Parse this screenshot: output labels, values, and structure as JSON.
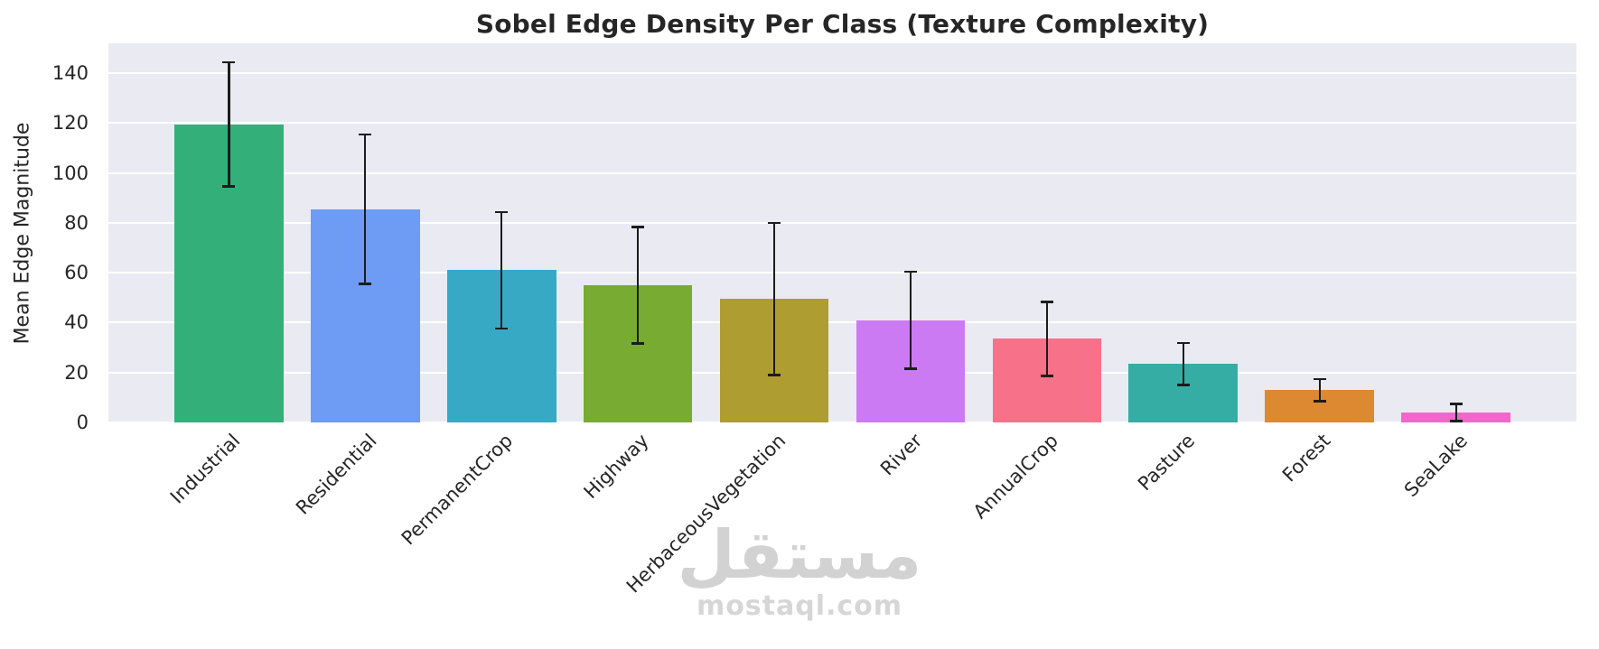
{
  "chart_data": {
    "type": "bar",
    "title": "Sobel Edge Density Per Class (Texture Complexity)",
    "xlabel": "",
    "ylabel": "Mean Edge Magnitude",
    "ylim": [
      0,
      152
    ],
    "yticks": [
      0,
      20,
      40,
      60,
      80,
      100,
      120,
      140
    ],
    "grid": true,
    "legend_position": "none",
    "categories": [
      "Industrial",
      "Residential",
      "PermanentCrop",
      "Highway",
      "HerbaceousVegetation",
      "River",
      "AnnualCrop",
      "Pasture",
      "Forest",
      "SeaLake"
    ],
    "values": [
      119.5,
      85.5,
      61,
      55,
      49.5,
      41,
      33.5,
      23.5,
      13,
      4
    ],
    "errors": [
      25,
      30,
      23.5,
      23.5,
      30.5,
      19.5,
      15,
      8.5,
      4.5,
      3.5
    ],
    "bar_colors": [
      "#33b07a",
      "#6e9bf4",
      "#38a9c5",
      "#77ab31",
      "#ae9d31",
      "#cc7af4",
      "#f77189",
      "#36ada4",
      "#dc8932",
      "#f565cc"
    ],
    "error_bar_color": "#1c1c1c",
    "plot_background": "#eaeaf2",
    "gridline_color": "#ffffff",
    "text_color": "#262626"
  },
  "watermark": {
    "arabic_text": "مستقل",
    "site_text": "mostaql.com"
  }
}
